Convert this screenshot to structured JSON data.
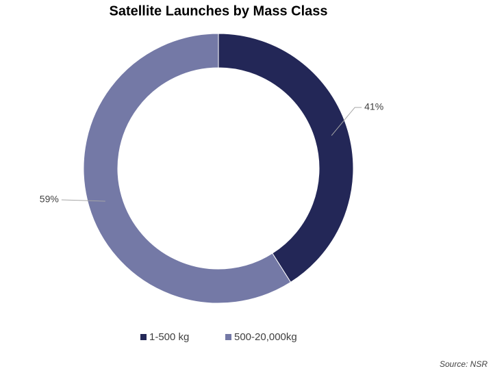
{
  "chart_data": {
    "type": "donut",
    "title": "Satellite Launches by Mass Class",
    "categories": [
      "1-500 kg",
      "500-20,000kg"
    ],
    "values": [
      41,
      59
    ],
    "value_labels": [
      "41%",
      "59%"
    ],
    "colors": [
      "#232757",
      "#7479a6"
    ],
    "source": "Source: NSR"
  }
}
